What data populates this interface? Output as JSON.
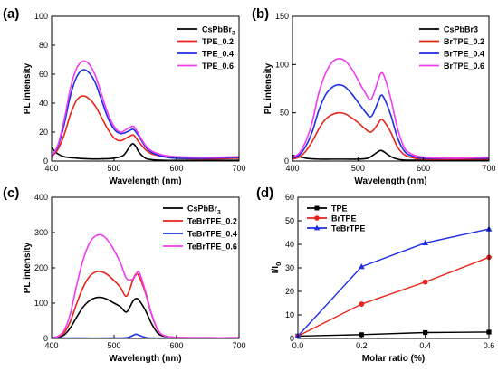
{
  "chart_data": [
    {
      "panel": "(a)",
      "type": "line",
      "xlabel": "Wavelength (nm)",
      "ylabel": "PL intensity",
      "xlim": [
        400,
        700
      ],
      "ylim": [
        0,
        100
      ],
      "xticks": [
        "400",
        "500",
        "600",
        "700"
      ],
      "yticks": [
        "0",
        "20",
        "40",
        "60",
        "80",
        "100"
      ],
      "legend_loc": "top-right",
      "grid": false,
      "series": [
        {
          "name": "CsPbBr3",
          "name_main": "CsPbBr",
          "name_sub": "3",
          "color": "#000000",
          "x": [
            400,
            410,
            420,
            440,
            460,
            480,
            500,
            515,
            525,
            530,
            535,
            540,
            550,
            560,
            580,
            600,
            650,
            700
          ],
          "y": [
            9,
            5,
            3,
            2,
            1.5,
            1.5,
            2,
            4,
            10,
            12,
            10,
            6,
            2,
            1,
            0.5,
            0.5,
            0.5,
            0.5
          ]
        },
        {
          "name": "TPE_0.2",
          "color": "#e8231a",
          "x": [
            400,
            410,
            420,
            430,
            440,
            450,
            460,
            470,
            480,
            490,
            500,
            510,
            520,
            530,
            535,
            540,
            550,
            560,
            580,
            600,
            650,
            700
          ],
          "y": [
            3,
            8,
            18,
            32,
            42,
            45,
            43,
            38,
            30,
            22,
            16,
            14,
            16,
            18,
            16,
            13,
            8,
            5,
            3,
            2,
            1.5,
            2
          ]
        },
        {
          "name": "TPE_0.4",
          "color": "#1c2ee6",
          "x": [
            400,
            410,
            420,
            430,
            440,
            450,
            460,
            470,
            480,
            490,
            500,
            510,
            520,
            530,
            535,
            540,
            550,
            560,
            580,
            600,
            650,
            700
          ],
          "y": [
            3,
            10,
            25,
            45,
            58,
            63,
            61,
            54,
            42,
            30,
            22,
            19,
            20,
            22,
            20,
            17,
            10,
            6,
            3,
            2,
            2,
            2.5
          ]
        },
        {
          "name": "TPE_0.6",
          "color": "#f03cf0",
          "x": [
            400,
            410,
            420,
            430,
            440,
            450,
            460,
            470,
            480,
            490,
            500,
            510,
            520,
            530,
            535,
            540,
            550,
            560,
            580,
            600,
            650,
            700
          ],
          "y": [
            3,
            11,
            28,
            50,
            64,
            69,
            67,
            59,
            46,
            33,
            24,
            20,
            22,
            24,
            22,
            18,
            11,
            7,
            4,
            3,
            2.5,
            3
          ]
        }
      ]
    },
    {
      "panel": "(b)",
      "type": "line",
      "xlabel": "Wavelength (nm)",
      "ylabel": "PL intensity",
      "xlim": [
        400,
        700
      ],
      "ylim": [
        0,
        150
      ],
      "xticks": [
        "400",
        "500",
        "600",
        "700"
      ],
      "yticks": [
        "0",
        "50",
        "100",
        "150"
      ],
      "legend_loc": "top-right",
      "grid": false,
      "series": [
        {
          "name": "CsPbBr3",
          "color": "#000000",
          "x": [
            400,
            420,
            440,
            460,
            480,
            500,
            515,
            525,
            535,
            545,
            555,
            570,
            600,
            650,
            700
          ],
          "y": [
            6,
            3,
            2,
            2,
            2,
            2,
            3,
            7,
            11,
            7,
            3,
            1,
            1,
            1,
            1
          ]
        },
        {
          "name": "BrTPE_0.2",
          "color": "#e8231a",
          "x": [
            400,
            410,
            420,
            430,
            440,
            450,
            460,
            470,
            480,
            490,
            500,
            510,
            520,
            530,
            535,
            540,
            550,
            560,
            570,
            580,
            600,
            650,
            700
          ],
          "y": [
            2,
            4,
            10,
            20,
            33,
            43,
            48,
            50,
            49,
            45,
            40,
            34,
            30,
            38,
            43,
            41,
            30,
            15,
            7,
            4,
            2,
            2,
            2
          ]
        },
        {
          "name": "BrTPE_0.4",
          "color": "#1c2ee6",
          "x": [
            400,
            410,
            420,
            430,
            440,
            450,
            460,
            470,
            480,
            490,
            500,
            510,
            520,
            530,
            535,
            540,
            550,
            560,
            570,
            580,
            600,
            650,
            700
          ],
          "y": [
            3,
            6,
            15,
            30,
            52,
            68,
            76,
            79,
            77,
            70,
            61,
            52,
            46,
            60,
            68,
            65,
            48,
            25,
            11,
            6,
            3,
            3,
            3
          ]
        },
        {
          "name": "BrTPE_0.6",
          "color": "#f03cf0",
          "x": [
            400,
            410,
            420,
            430,
            440,
            450,
            460,
            470,
            480,
            490,
            500,
            510,
            520,
            530,
            535,
            540,
            550,
            560,
            570,
            580,
            600,
            650,
            700
          ],
          "y": [
            4,
            8,
            20,
            40,
            70,
            90,
            102,
            106,
            104,
            96,
            84,
            72,
            64,
            82,
            91,
            88,
            65,
            35,
            15,
            8,
            4,
            3,
            4
          ]
        }
      ]
    },
    {
      "panel": "(c)",
      "type": "line",
      "xlabel": "Wavelength (nm)",
      "ylabel": "PL intensity",
      "xlim": [
        400,
        700
      ],
      "ylim": [
        0,
        400
      ],
      "xticks": [
        "400",
        "500",
        "600",
        "700"
      ],
      "yticks": [
        "0",
        "100",
        "200",
        "300",
        "400"
      ],
      "legend_loc": "top-right",
      "grid": false,
      "series": [
        {
          "name": "CsPbBr3",
          "name_main": "CsPbBr",
          "name_sub": "3",
          "color": "#000000",
          "x": [
            400,
            410,
            420,
            430,
            440,
            450,
            460,
            470,
            480,
            490,
            500,
            510,
            520,
            530,
            535,
            540,
            550,
            560,
            570,
            580,
            600,
            650,
            700
          ],
          "y": [
            1,
            3,
            10,
            30,
            60,
            88,
            106,
            115,
            116,
            110,
            100,
            90,
            75,
            105,
            113,
            108,
            80,
            42,
            15,
            6,
            2,
            1,
            1
          ]
        },
        {
          "name": "TeBrTPE_0.2",
          "color": "#e8231a",
          "x": [
            400,
            410,
            420,
            430,
            440,
            450,
            460,
            470,
            480,
            490,
            500,
            510,
            520,
            530,
            535,
            540,
            550,
            560,
            570,
            580,
            600,
            650,
            700
          ],
          "y": [
            2,
            5,
            16,
            48,
            98,
            143,
            174,
            188,
            189,
            180,
            164,
            145,
            120,
            165,
            183,
            176,
            130,
            68,
            24,
            8,
            3,
            2,
            2
          ]
        },
        {
          "name": "TeBrTPE_0.4",
          "color": "#1c2ee6",
          "x": [
            400,
            450,
            500,
            520,
            530,
            535,
            540,
            550,
            560,
            600,
            650,
            700
          ],
          "y": [
            1,
            1,
            1,
            2,
            8,
            12,
            9,
            3,
            1,
            1,
            1,
            1
          ]
        },
        {
          "name": "TeBrTPE_0.6",
          "color": "#f03cf0",
          "x": [
            400,
            410,
            420,
            430,
            440,
            450,
            460,
            470,
            480,
            490,
            500,
            510,
            520,
            530,
            535,
            540,
            550,
            560,
            570,
            580,
            600,
            650,
            700
          ],
          "y": [
            2,
            6,
            22,
            70,
            150,
            220,
            268,
            290,
            293,
            278,
            250,
            215,
            170,
            168,
            180,
            188,
            135,
            70,
            25,
            8,
            3,
            2,
            2
          ]
        }
      ]
    },
    {
      "panel": "(d)",
      "type": "line",
      "xlabel": "Molar ratio (%)",
      "ylabel": "I/I0",
      "ylabel_main": "I/I",
      "ylabel_sub": "0",
      "xlim": [
        0,
        0.6
      ],
      "ylim": [
        0,
        60
      ],
      "xticks": [
        "0.0",
        "0.2",
        "0.4",
        "0.6"
      ],
      "yticks": [
        "0",
        "10",
        "20",
        "30",
        "40",
        "50",
        "60"
      ],
      "legend_loc": "top-left",
      "grid": false,
      "series": [
        {
          "name": "TPE",
          "color": "#000000",
          "marker": "square",
          "x": [
            0,
            0.2,
            0.4,
            0.6
          ],
          "y": [
            1,
            1.6,
            2.5,
            2.7
          ]
        },
        {
          "name": "BrTPE",
          "color": "#e8231a",
          "marker": "circle",
          "x": [
            0,
            0.2,
            0.4,
            0.6
          ],
          "y": [
            1,
            14.6,
            24,
            34.5
          ]
        },
        {
          "name": "TeBrTPE",
          "color": "#1c2ee6",
          "marker": "triangle",
          "x": [
            0,
            0.2,
            0.4,
            0.6
          ],
          "y": [
            1,
            30.5,
            40.6,
            46.5
          ]
        }
      ]
    }
  ]
}
